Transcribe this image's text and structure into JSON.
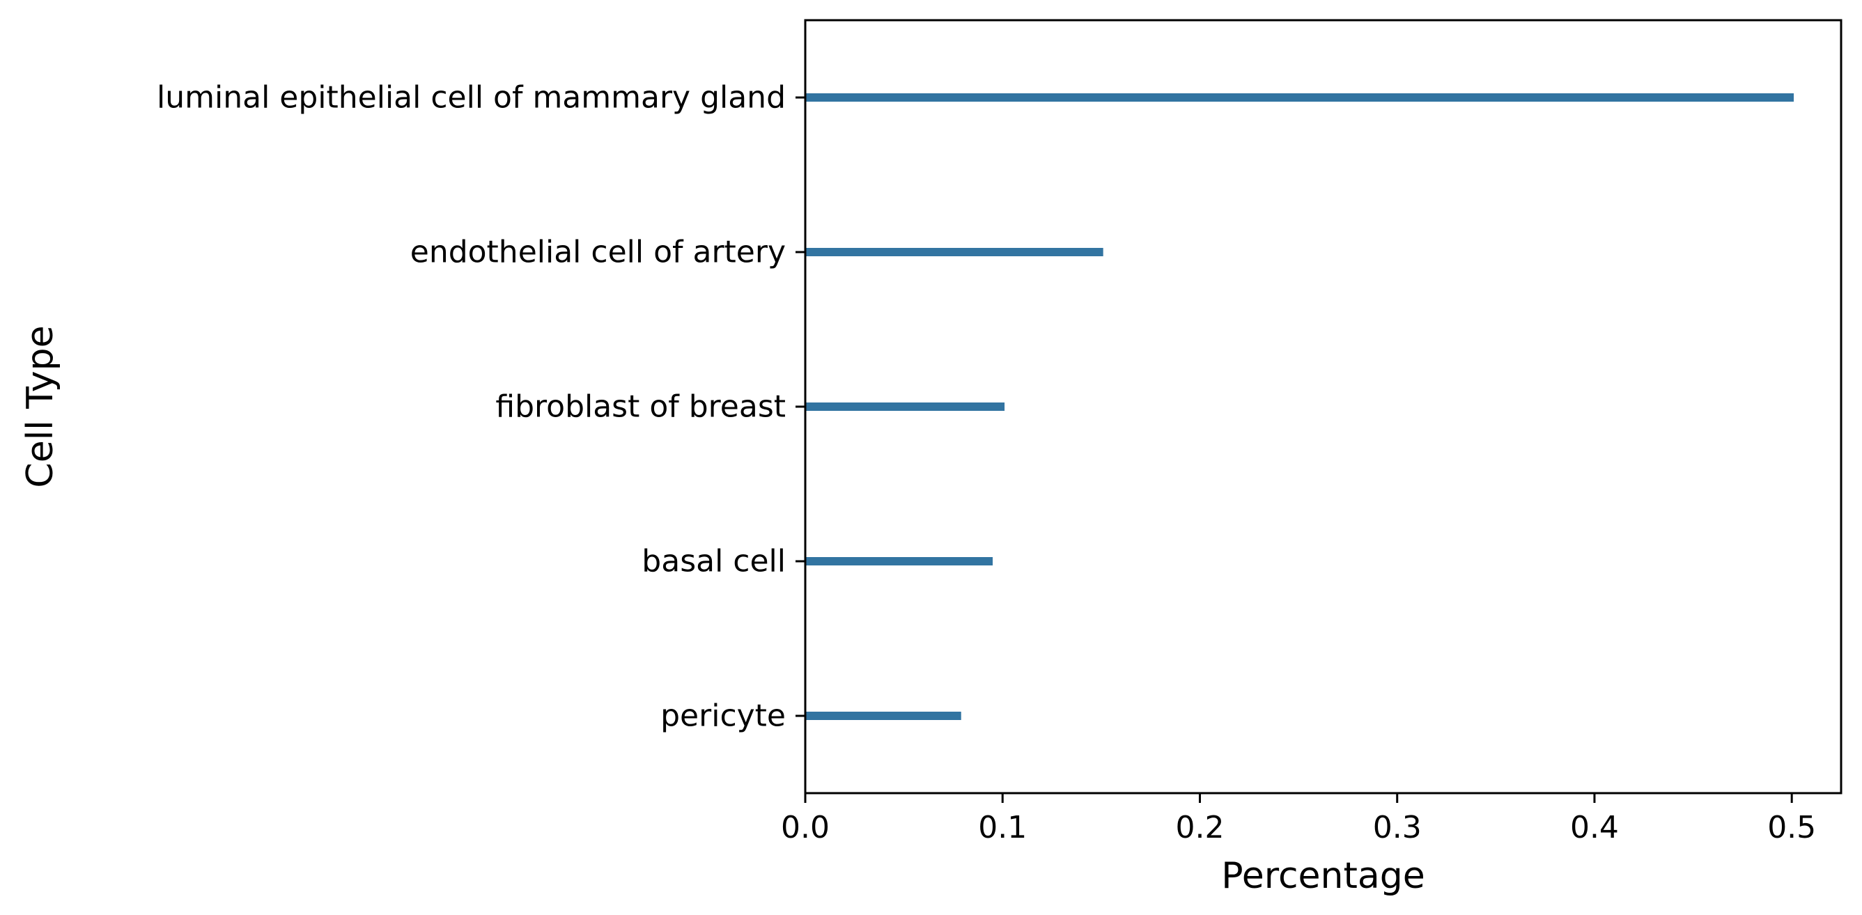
{
  "chart_data": {
    "type": "bar",
    "orientation": "horizontal",
    "categories": [
      "luminal epithelial cell of mammary gland",
      "endothelial cell of artery",
      "fibroblast of breast",
      "basal cell",
      "pericyte"
    ],
    "values": [
      0.501,
      0.151,
      0.101,
      0.095,
      0.079
    ],
    "xlabel": "Percentage",
    "ylabel": "Cell Type",
    "xlim": [
      0.0,
      0.525
    ],
    "xticks": [
      0.0,
      0.1,
      0.2,
      0.3,
      0.4,
      0.5
    ],
    "xtick_labels": [
      "0.0",
      "0.1",
      "0.2",
      "0.3",
      "0.4",
      "0.5"
    ],
    "grid": false,
    "bar_color": "#3274a1"
  }
}
